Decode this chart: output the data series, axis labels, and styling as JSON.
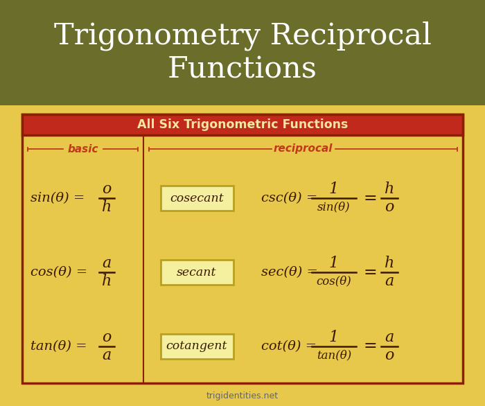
{
  "title": "Trigonometry Reciprocal\nFunctions",
  "title_bg": "#6b6e2b",
  "title_color": "#ffffff",
  "body_bg": "#e8c84a",
  "table_border_color": "#8B2000",
  "header_bg": "#c0291b",
  "header_text": "All Six Trigonometric Functions",
  "header_text_color": "#f5e6a0",
  "label_color": "#c0391b",
  "formula_color": "#3a1800",
  "box_fill": "#f5f0a0",
  "box_edge": "#b8a020",
  "footer_text": "trigidentities.net",
  "footer_color": "#666666",
  "rows": [
    {
      "basic": "sin(θ) = ",
      "basic_frac_num": "o",
      "basic_frac_den": "h",
      "name": "cosecant",
      "recip": "csc(θ) = ",
      "recip_frac_num": "1",
      "recip_frac_den": "sin(θ)",
      "frac2_num": "h",
      "frac2_den": "o"
    },
    {
      "basic": "cos(θ) = ",
      "basic_frac_num": "a",
      "basic_frac_den": "h",
      "name": "secant",
      "recip": "sec(θ) = ",
      "recip_frac_num": "1",
      "recip_frac_den": "cos(θ)",
      "frac2_num": "h",
      "frac2_den": "a"
    },
    {
      "basic": "tan(θ) = ",
      "basic_frac_num": "o",
      "basic_frac_den": "a",
      "name": "cotangent",
      "recip": "cot(θ) = ",
      "recip_frac_num": "1",
      "recip_frac_den": "tan(θ)",
      "frac2_num": "a",
      "frac2_den": "o"
    }
  ]
}
